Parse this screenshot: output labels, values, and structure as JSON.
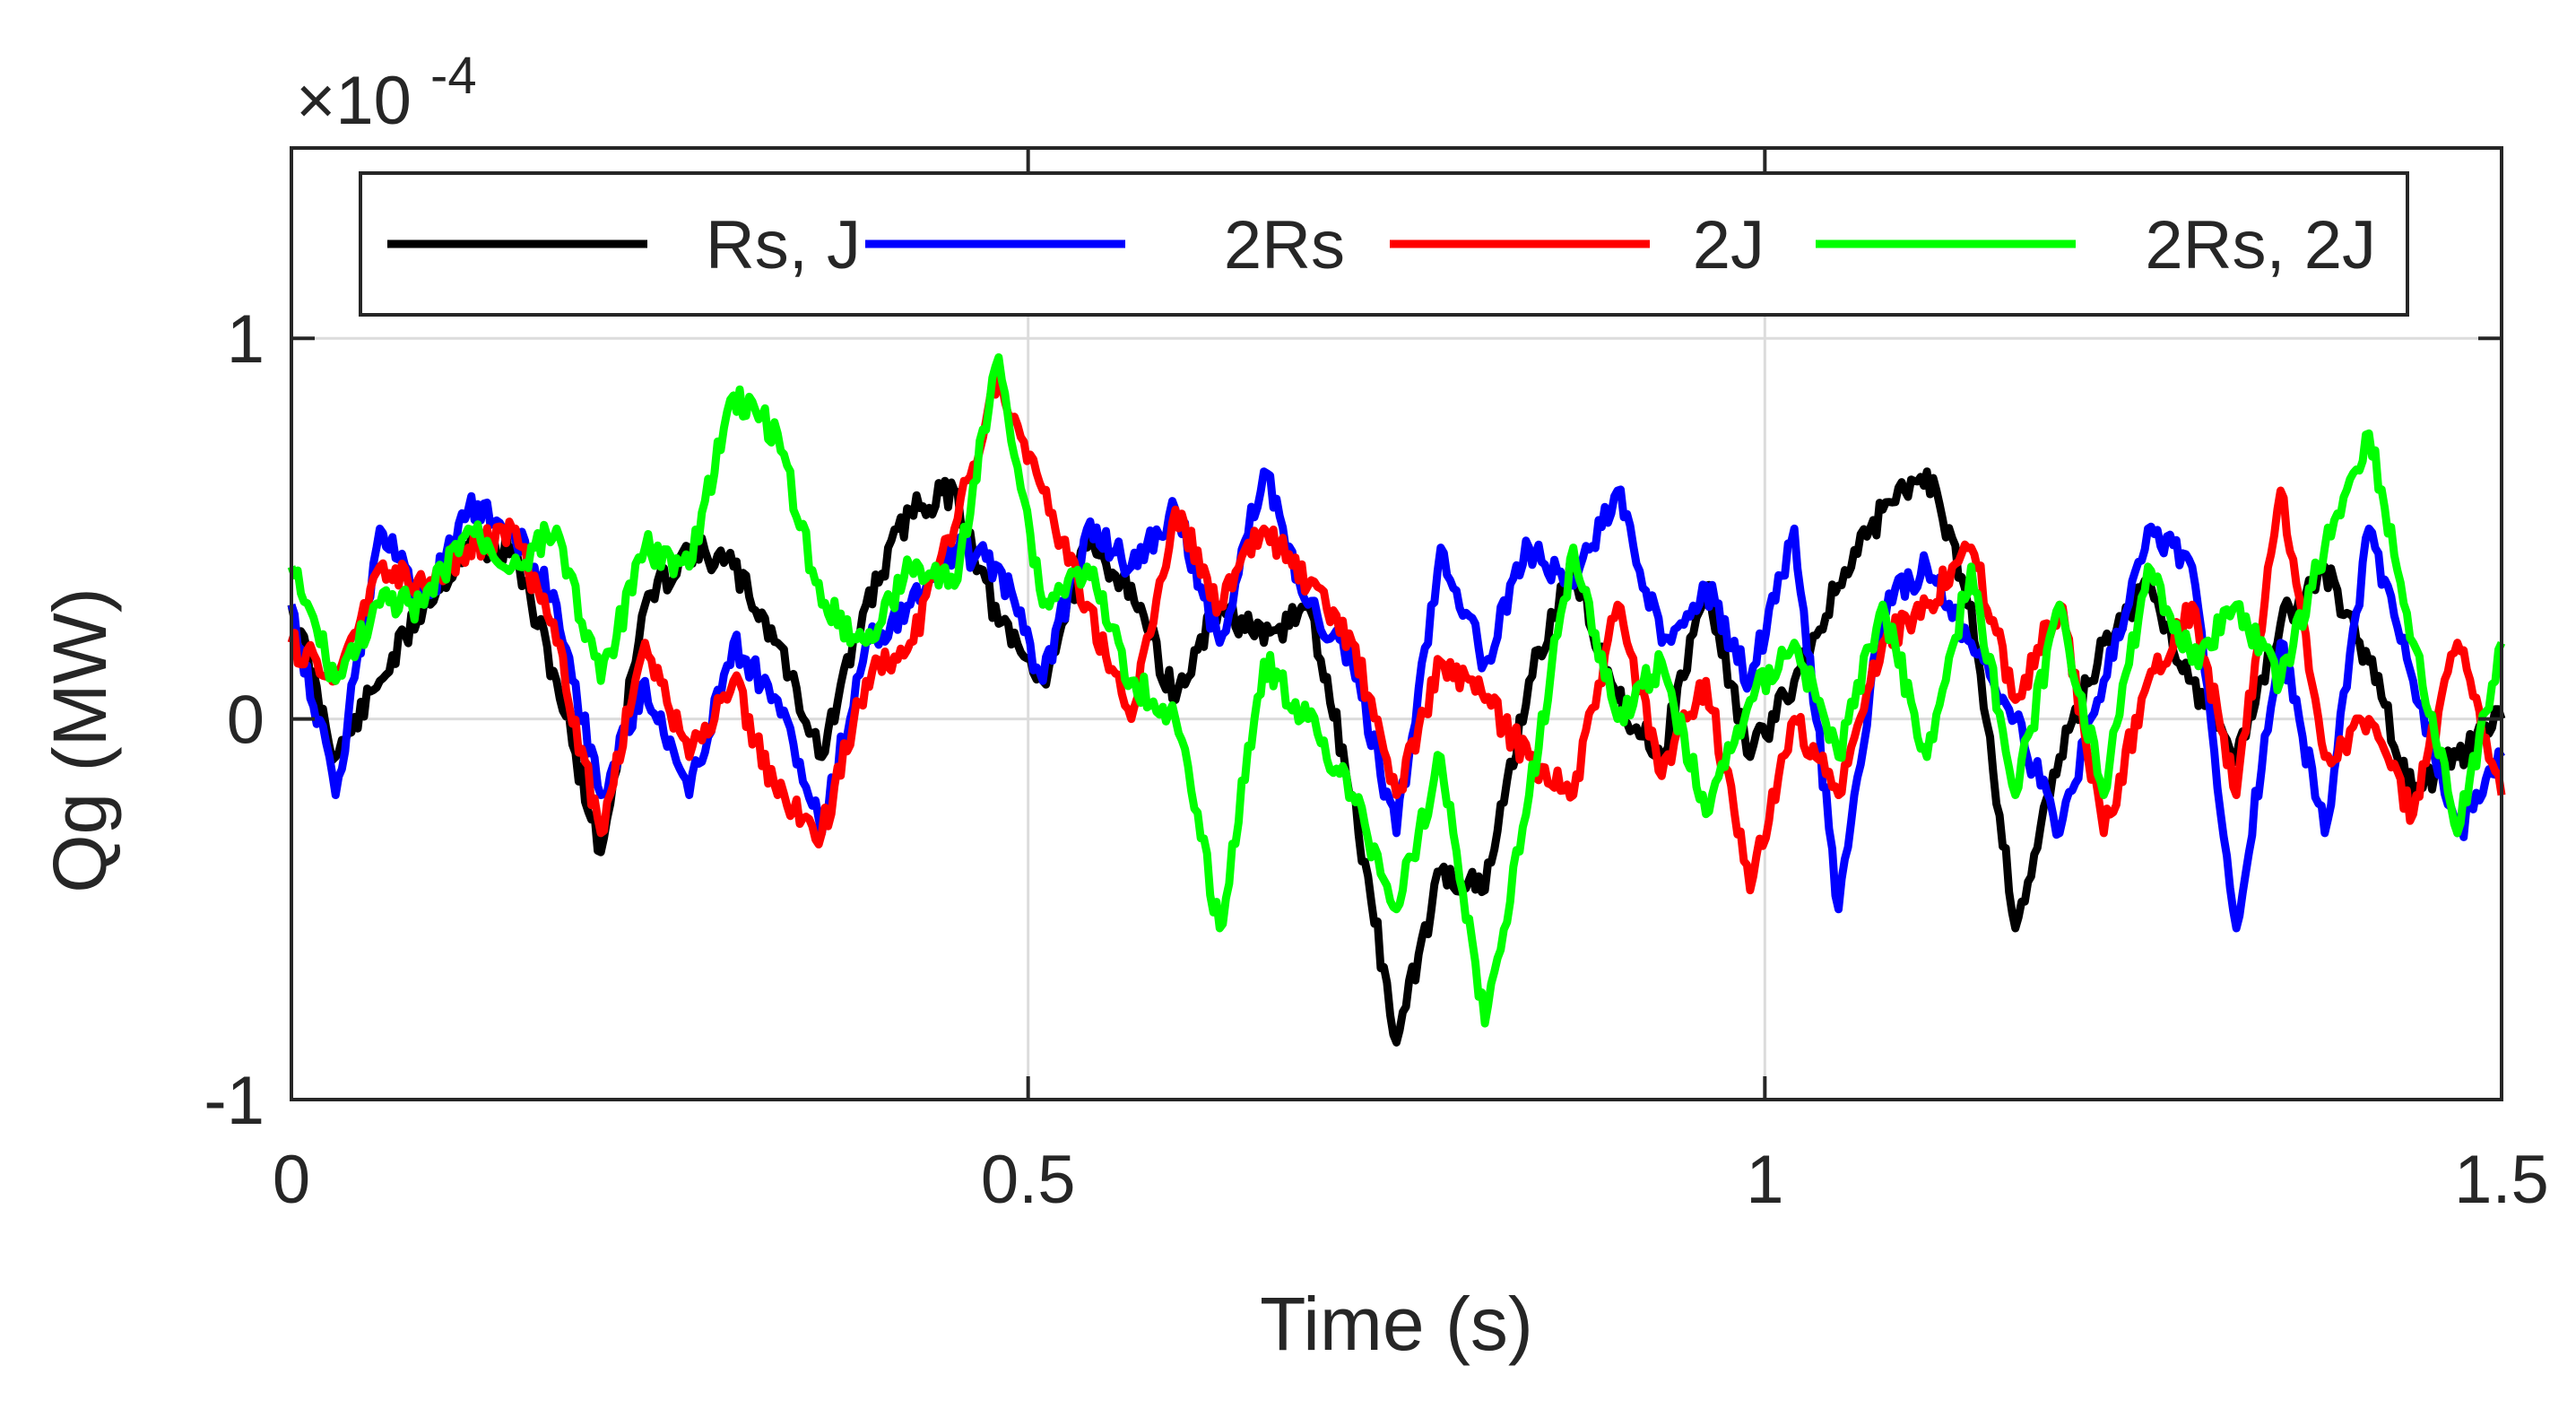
{
  "chart_data": {
    "type": "line",
    "title": "",
    "xlabel": "Time (s)",
    "ylabel": "Qg (MW)",
    "xlim": [
      0,
      1.5
    ],
    "ylim": [
      -1,
      1.5
    ],
    "y_exponent_label": "×10",
    "y_exponent_power": "-4",
    "x_ticks": [
      0,
      0.5,
      1,
      1.5
    ],
    "x_tick_labels": [
      "0",
      "0.5",
      "1",
      "1.5"
    ],
    "y_ticks": [
      -1,
      0,
      1
    ],
    "y_tick_labels": [
      "-1",
      "0",
      "1"
    ],
    "grid": true,
    "legend_position": "top (inside axes, horizontal)",
    "series": [
      {
        "name": "Rs, J",
        "color": "#000000",
        "x": [
          0,
          0.03,
          0.06,
          0.09,
          0.12,
          0.15,
          0.18,
          0.21,
          0.24,
          0.27,
          0.3,
          0.33,
          0.36,
          0.39,
          0.42,
          0.45,
          0.48,
          0.51,
          0.54,
          0.57,
          0.6,
          0.63,
          0.66,
          0.69,
          0.72,
          0.75,
          0.78,
          0.81,
          0.84,
          0.87,
          0.9,
          0.93,
          0.96,
          0.99,
          1.02,
          1.05,
          1.08,
          1.11,
          1.14,
          1.17,
          1.2,
          1.23,
          1.26,
          1.29,
          1.32,
          1.35,
          1.38,
          1.41,
          1.44,
          1.47,
          1.5
        ],
        "values": [
          0.3,
          -0.1,
          0.1,
          0.3,
          0.45,
          0.45,
          0.1,
          -0.35,
          0.3,
          0.45,
          0.4,
          0.2,
          -0.1,
          0.3,
          0.55,
          0.6,
          0.25,
          0.1,
          0.45,
          0.35,
          0.05,
          0.3,
          0.2,
          0.3,
          -0.2,
          -0.85,
          -0.4,
          -0.45,
          0.1,
          0.4,
          0.05,
          -0.1,
          0.35,
          -0.1,
          0.1,
          0.35,
          0.55,
          0.65,
          0.3,
          -0.55,
          -0.1,
          0.2,
          0.35,
          0.1,
          -0.1,
          0.25,
          0.4,
          0.15,
          -0.2,
          -0.1,
          0.0
        ]
      },
      {
        "name": "2Rs",
        "color": "#0000ff",
        "x": [
          0,
          0.03,
          0.06,
          0.09,
          0.12,
          0.15,
          0.18,
          0.21,
          0.24,
          0.27,
          0.3,
          0.33,
          0.36,
          0.39,
          0.42,
          0.45,
          0.48,
          0.51,
          0.54,
          0.57,
          0.6,
          0.63,
          0.66,
          0.69,
          0.72,
          0.75,
          0.78,
          0.81,
          0.84,
          0.87,
          0.9,
          0.93,
          0.96,
          0.99,
          1.02,
          1.05,
          1.08,
          1.11,
          1.14,
          1.17,
          1.2,
          1.23,
          1.26,
          1.29,
          1.32,
          1.35,
          1.38,
          1.41,
          1.44,
          1.47,
          1.5
        ],
        "values": [
          0.3,
          -0.2,
          0.5,
          0.3,
          0.55,
          0.5,
          0.3,
          -0.2,
          0.1,
          -0.2,
          0.2,
          0.05,
          -0.3,
          0.2,
          0.3,
          0.45,
          0.4,
          0.1,
          0.5,
          0.4,
          0.55,
          0.2,
          0.65,
          0.3,
          0.15,
          -0.3,
          0.45,
          0.15,
          0.45,
          0.35,
          0.6,
          0.2,
          0.35,
          0.1,
          0.5,
          -0.5,
          0.3,
          0.4,
          0.2,
          0.0,
          -0.3,
          0.1,
          0.5,
          0.4,
          -0.55,
          0.2,
          -0.3,
          0.5,
          0.1,
          -0.3,
          -0.1
        ]
      },
      {
        "name": "2J",
        "color": "#ff0000",
        "x": [
          0,
          0.03,
          0.06,
          0.09,
          0.12,
          0.15,
          0.18,
          0.21,
          0.24,
          0.27,
          0.3,
          0.33,
          0.36,
          0.39,
          0.42,
          0.45,
          0.48,
          0.51,
          0.54,
          0.57,
          0.6,
          0.63,
          0.66,
          0.69,
          0.72,
          0.75,
          0.78,
          0.81,
          0.84,
          0.87,
          0.9,
          0.93,
          0.96,
          0.99,
          1.02,
          1.05,
          1.08,
          1.11,
          1.14,
          1.17,
          1.2,
          1.23,
          1.26,
          1.29,
          1.32,
          1.35,
          1.38,
          1.41,
          1.44,
          1.47,
          1.5
        ],
        "values": [
          0.2,
          0.1,
          0.4,
          0.35,
          0.45,
          0.5,
          0.2,
          -0.3,
          0.2,
          -0.1,
          0.1,
          -0.2,
          -0.3,
          0.1,
          0.2,
          0.5,
          0.9,
          0.6,
          0.3,
          0.0,
          0.55,
          0.3,
          0.5,
          0.35,
          0.2,
          -0.2,
          0.15,
          0.05,
          -0.1,
          -0.2,
          0.3,
          -0.15,
          0.1,
          -0.45,
          0.0,
          -0.2,
          0.2,
          0.3,
          0.45,
          0.05,
          0.3,
          -0.3,
          0.1,
          0.3,
          -0.2,
          0.6,
          -0.1,
          0.0,
          -0.25,
          0.2,
          -0.2
        ]
      },
      {
        "name": "2Rs, 2J",
        "color": "#00ff00",
        "x": [
          0,
          0.03,
          0.06,
          0.09,
          0.12,
          0.15,
          0.18,
          0.21,
          0.24,
          0.27,
          0.3,
          0.33,
          0.36,
          0.39,
          0.42,
          0.45,
          0.48,
          0.51,
          0.54,
          0.57,
          0.6,
          0.63,
          0.66,
          0.69,
          0.72,
          0.75,
          0.78,
          0.81,
          0.84,
          0.87,
          0.9,
          0.93,
          0.96,
          0.99,
          1.02,
          1.05,
          1.08,
          1.11,
          1.14,
          1.17,
          1.2,
          1.23,
          1.26,
          1.29,
          1.32,
          1.35,
          1.38,
          1.41,
          1.44,
          1.47,
          1.5
        ],
        "values": [
          0.4,
          0.1,
          0.3,
          0.3,
          0.5,
          0.4,
          0.5,
          0.1,
          0.45,
          0.4,
          0.85,
          0.75,
          0.3,
          0.2,
          0.4,
          0.35,
          0.95,
          0.3,
          0.4,
          0.1,
          0.0,
          -0.55,
          0.15,
          0.0,
          -0.2,
          -0.5,
          -0.1,
          -0.8,
          -0.2,
          0.45,
          0.0,
          0.15,
          -0.25,
          0.05,
          0.2,
          -0.1,
          0.3,
          -0.1,
          0.4,
          -0.2,
          0.3,
          -0.2,
          0.4,
          0.15,
          0.3,
          0.1,
          0.45,
          0.75,
          0.2,
          -0.3,
          0.2
        ]
      }
    ]
  }
}
